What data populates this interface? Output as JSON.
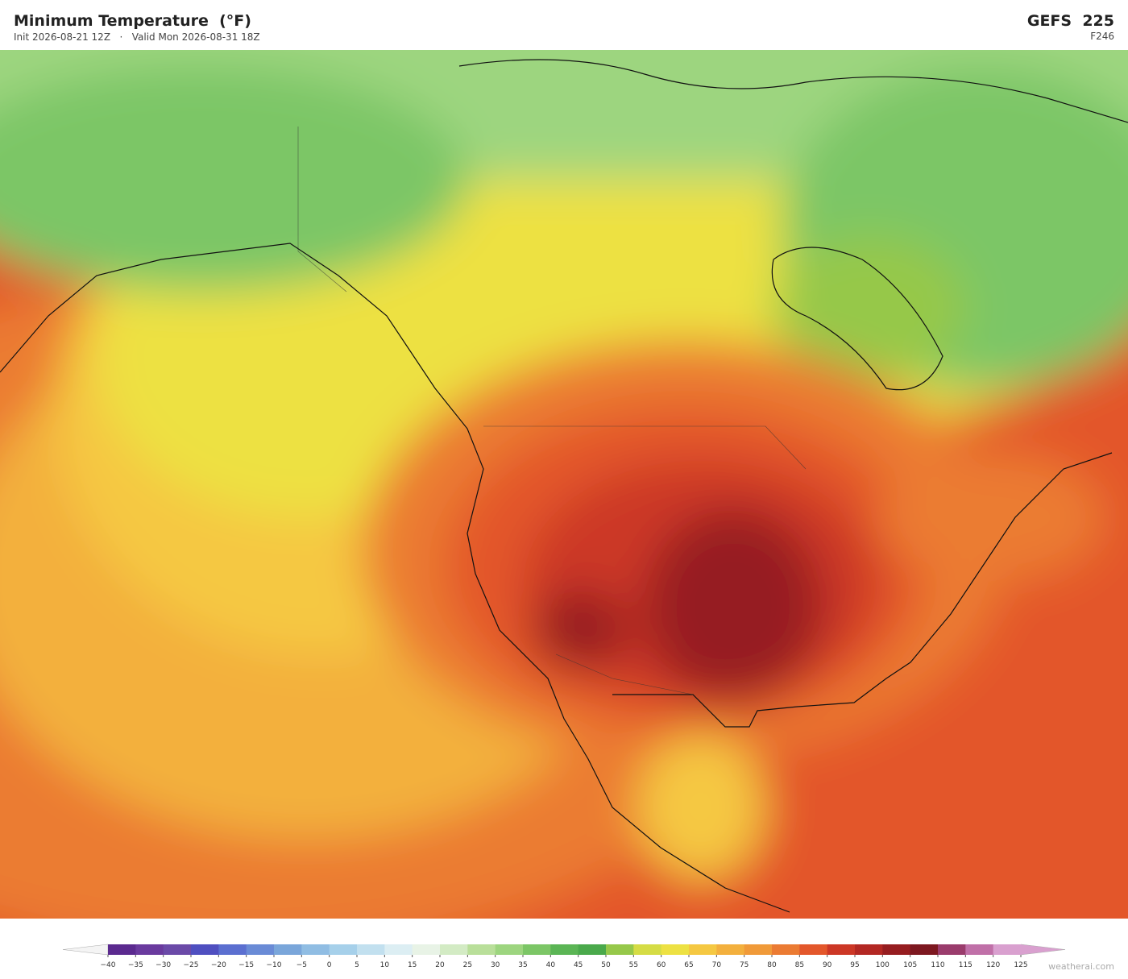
{
  "header": {
    "title": "Minimum Temperature  (°F)",
    "subtitle": "Init 2026-08-21 12Z   ·   Valid Mon 2026-08-31 18Z",
    "model": "GEFS  225",
    "forecast": "F246"
  },
  "colorbar": {
    "ticks": [
      "−40",
      "−35",
      "−30",
      "−25",
      "−20",
      "−15",
      "−10",
      "−5",
      "0",
      "5",
      "10",
      "15",
      "20",
      "25",
      "30",
      "35",
      "40",
      "45",
      "50",
      "55",
      "60",
      "65",
      "70",
      "75",
      "80",
      "85",
      "90",
      "95",
      "100",
      "105",
      "110",
      "115",
      "120",
      "125"
    ],
    "colors": [
      "#5b2a8f",
      "#6a3a9e",
      "#6b4aa8",
      "#4f4fc0",
      "#5b6fd0",
      "#6a8bd6",
      "#7aa6da",
      "#90bde3",
      "#a6d0ea",
      "#c2e0ef",
      "#dceef3",
      "#e8f3e6",
      "#d3ebc4",
      "#b9df9a",
      "#9dd57f",
      "#7cc666",
      "#5bb555",
      "#4aa94b",
      "#96c84a",
      "#d5dc45",
      "#ede143",
      "#f5c842",
      "#f3b03e",
      "#f09a39",
      "#eb7b33",
      "#e3572b",
      "#cc3726",
      "#b32823",
      "#961d20",
      "#7d1820",
      "#9a3c6c",
      "#c070a8",
      "#d9a0cf"
    ]
  },
  "credit": "weatherai.com"
}
